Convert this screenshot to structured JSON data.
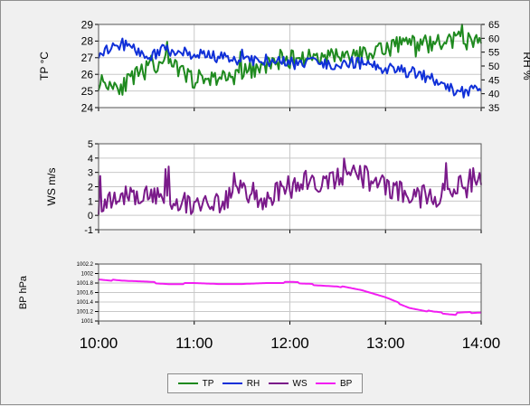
{
  "colors": {
    "TP": "#1f8a1f",
    "RH": "#1030d8",
    "WS": "#7a1a8a",
    "BP": "#f21ef2",
    "grid": "#c8c8c8",
    "plot_bg": "#ffffff"
  },
  "x_tick_labels": [
    "10:00",
    "11:00",
    "12:00",
    "13:00",
    "14:00"
  ],
  "legend": [
    {
      "key": "TP",
      "label": "TP"
    },
    {
      "key": "RH",
      "label": "RH"
    },
    {
      "key": "WS",
      "label": "WS"
    },
    {
      "key": "BP",
      "label": "BP"
    }
  ],
  "chart_data": [
    {
      "type": "line",
      "ylabel": "TP °C",
      "y2label": "RH %",
      "ylim": [
        24,
        29
      ],
      "y2lim": [
        35,
        65
      ],
      "yticks": [
        "24",
        "25",
        "26",
        "27",
        "28",
        "29"
      ],
      "y2ticks": [
        "35",
        "40",
        "45",
        "50",
        "55",
        "60",
        "65"
      ],
      "x_hours": [
        10.0,
        10.25,
        10.5,
        10.67,
        11.0,
        11.25,
        11.5,
        11.75,
        12.0,
        12.25,
        12.5,
        12.75,
        13.0,
        13.25,
        13.5,
        13.75,
        14.0
      ],
      "series": [
        {
          "name": "TP",
          "axis": "left",
          "values": [
            25.6,
            25.3,
            26.3,
            26.8,
            25.7,
            25.8,
            26.0,
            26.6,
            26.9,
            27.1,
            27.0,
            27.2,
            27.7,
            27.9,
            27.8,
            28.1,
            27.9
          ]
        },
        {
          "name": "RH",
          "axis": "right",
          "values": [
            55,
            58,
            53,
            56,
            54,
            53,
            52,
            52,
            51,
            51,
            51,
            51,
            49,
            48,
            45,
            40,
            42
          ]
        }
      ]
    },
    {
      "type": "line",
      "ylabel": "WS m/s",
      "ylim": [
        -1,
        5
      ],
      "yticks": [
        "-1",
        "0",
        "1",
        "2",
        "3",
        "4",
        "5"
      ],
      "x_hours": [
        10.0,
        10.25,
        10.5,
        10.75,
        11.0,
        11.25,
        11.5,
        11.75,
        12.0,
        12.25,
        12.5,
        12.75,
        13.0,
        13.25,
        13.5,
        13.75,
        14.0
      ],
      "series": [
        {
          "name": "WS",
          "axis": "left",
          "values": [
            0.9,
            1.2,
            1.5,
            1.1,
            0.6,
            1.0,
            1.7,
            1.2,
            2.0,
            2.4,
            2.6,
            2.8,
            1.9,
            1.4,
            1.2,
            2.3,
            2.6
          ]
        }
      ]
    },
    {
      "type": "line",
      "ylabel": "BP hPa",
      "ylim": [
        1001,
        1002.2
      ],
      "yticks": [
        "1001",
        "1001.2",
        "1001.4",
        "1001.6",
        "1001.8",
        "1002",
        "1002.2"
      ],
      "x_hours": [
        10.0,
        10.25,
        10.5,
        10.75,
        11.0,
        11.25,
        11.5,
        11.75,
        12.0,
        12.25,
        12.5,
        12.75,
        13.0,
        13.25,
        13.5,
        13.75,
        14.0
      ],
      "series": [
        {
          "name": "BP",
          "axis": "left",
          "values": [
            1001.9,
            1001.85,
            1001.83,
            1001.8,
            1001.8,
            1001.78,
            1001.78,
            1001.8,
            1001.8,
            1001.78,
            1001.75,
            1001.65,
            1001.5,
            1001.3,
            1001.2,
            1001.15,
            1001.18
          ]
        }
      ]
    }
  ]
}
